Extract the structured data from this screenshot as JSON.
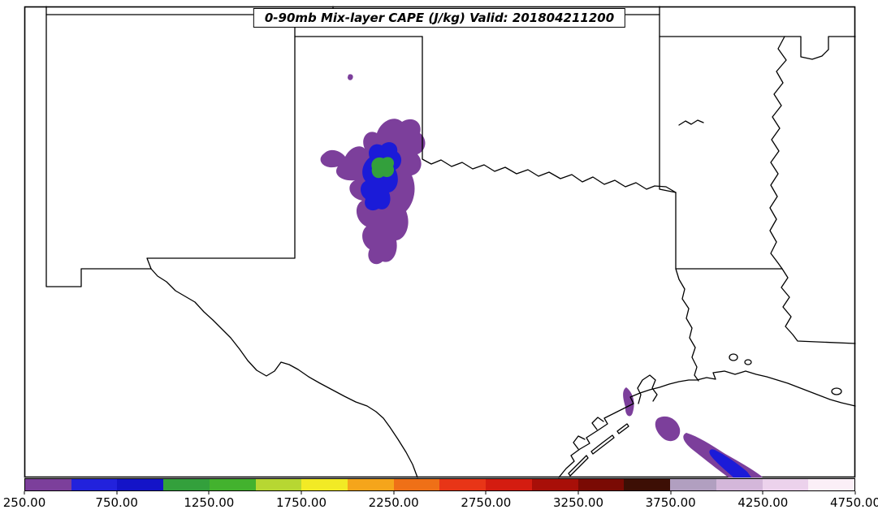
{
  "figure": {
    "title": "0-90mb Mix-layer CAPE (J/kg) Valid: 201804211200"
  },
  "colors": {
    "background": "#ffffff",
    "frame_border": "#000000",
    "state_lines": "#000000",
    "cape_purple": "#7c3f9b",
    "cape_blue": "#1b1bd8",
    "cape_green": "#33a03c"
  },
  "colorbar": {
    "orientation": "horizontal",
    "min": 250,
    "max": 4750,
    "interval": 250,
    "tick_labels": [
      "250.00",
      "750.00",
      "1250.00",
      "1750.00",
      "2250.00",
      "2750.00",
      "3250.00",
      "3750.00",
      "4250.00",
      "4750.00"
    ],
    "segments": [
      {
        "from": 250,
        "to": 500,
        "color": "#7c3f9b"
      },
      {
        "from": 500,
        "to": 750,
        "color": "#2222dc"
      },
      {
        "from": 750,
        "to": 1000,
        "color": "#1414c8"
      },
      {
        "from": 1000,
        "to": 1250,
        "color": "#33a03c"
      },
      {
        "from": 1250,
        "to": 1500,
        "color": "#43b22e"
      },
      {
        "from": 1500,
        "to": 1750,
        "color": "#b7d732"
      },
      {
        "from": 1750,
        "to": 2000,
        "color": "#f2ea25"
      },
      {
        "from": 2000,
        "to": 2250,
        "color": "#f5a51b"
      },
      {
        "from": 2250,
        "to": 2500,
        "color": "#ef7017"
      },
      {
        "from": 2500,
        "to": 2750,
        "color": "#e83517"
      },
      {
        "from": 2750,
        "to": 3000,
        "color": "#d41c10"
      },
      {
        "from": 3000,
        "to": 3250,
        "color": "#a80f08"
      },
      {
        "from": 3250,
        "to": 3500,
        "color": "#7a0a04"
      },
      {
        "from": 3500,
        "to": 3750,
        "color": "#3d0f05"
      },
      {
        "from": 3750,
        "to": 4000,
        "color": "#b19fc0"
      },
      {
        "from": 4000,
        "to": 4250,
        "color": "#d4b7da"
      },
      {
        "from": 4250,
        "to": 4500,
        "color": "#ecd2ec"
      },
      {
        "from": 4500,
        "to": 4750,
        "color": "#fbeff7"
      }
    ]
  },
  "chart_data": {
    "type": "heatmap",
    "subtype": "filled-contour-weather-map",
    "title": "0-90mb Mix-layer CAPE (J/kg) Valid: 201804211200",
    "variable": "0-90mb Mix-layer CAPE",
    "units": "J/kg",
    "valid": "201804211200",
    "map_extent": "South-central United States (New Mexico, Texas, Oklahoma, Arkansas, Louisiana region)",
    "levels": [
      250,
      500,
      750,
      1000,
      1250,
      1500,
      1750,
      2000,
      2250,
      2500,
      2750,
      3000,
      3250,
      3500,
      3750,
      4000,
      4250,
      4500,
      4750
    ],
    "colorbar_tick_labels": [
      "250.00",
      "750.00",
      "1250.00",
      "1750.00",
      "2250.00",
      "2750.00",
      "3250.00",
      "3750.00",
      "4250.00",
      "4750.00"
    ],
    "legend_position": "bottom",
    "grid": false,
    "features": [
      {
        "name": "northwest-texas-maximum",
        "location": "eastern Texas Panhandle / South Plains",
        "contours_present": [
          250,
          500,
          750,
          1000,
          1250
        ],
        "peak_value_bin": "1000-1500 J/kg"
      },
      {
        "name": "gulf-coast-band",
        "location": "upper Texas and southwest Louisiana coast",
        "contours_present": [
          250,
          500,
          750
        ],
        "peak_value_bin": "500-1000 J/kg"
      },
      {
        "name": "panhandle-speck",
        "location": "Oklahoma Panhandle vicinity",
        "contours_present": [
          250
        ],
        "peak_value_bin": "250-500 J/kg"
      }
    ]
  }
}
